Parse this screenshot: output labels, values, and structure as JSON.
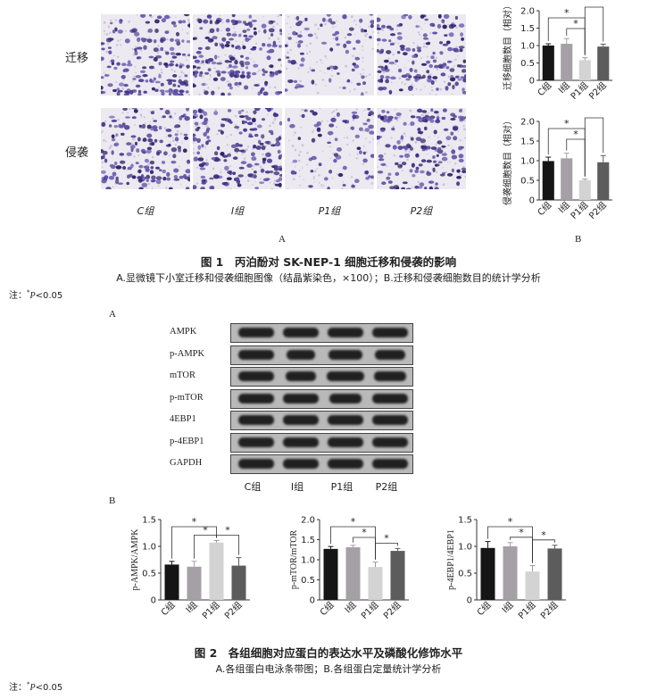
{
  "fig1": {
    "row_labels": [
      "迁移",
      "侵袭"
    ],
    "group_labels": [
      "C组",
      "I组",
      "P1组",
      "P2组"
    ],
    "panel_a": "A",
    "panel_b": "B",
    "title": "图 1　丙泊酚对 SK-NEP-1 细胞迁移和侵袭的影响",
    "subtitle": "A.显微镜下小室迁移和侵袭细胞图像（结晶紫染色，×100）；B.迁移和侵袭细胞数目的统计学分析",
    "note_prefix": "注：",
    "note_sup": "*",
    "note_p": "P",
    "note_rest": "<0.05"
  },
  "fig2": {
    "panel_a": "A",
    "panel_b": "B",
    "blot_labels": [
      "AMPK",
      "p-AMPK",
      "mTOR",
      "p-mTOR",
      "4EBP1",
      "p-4EBP1",
      "GAPDH"
    ],
    "lane_labels": [
      "C组",
      "I组",
      "P1组",
      "P2组"
    ],
    "title": "图 2　各组细胞对应蛋白的表达水平及磷酸化修饰水平",
    "subtitle": "A.各组蛋白电泳条带图；B.各组蛋白定量统计学分析",
    "note_prefix": "注：",
    "note_sup": "*",
    "note_p": "P",
    "note_rest": "<0.05"
  },
  "colors": {
    "black": "#151515",
    "gray1": "#a5a0a6",
    "gray2": "#d3d3d3",
    "gray3": "#5c5c5c",
    "stain": "#4a3b8c"
  },
  "chart_data": [
    {
      "type": "bar",
      "panel": "fig1-migration",
      "ylabel": "迁移细胞数目（相对）",
      "categories": [
        "C组",
        "I组",
        "P1组",
        "P2组"
      ],
      "values": [
        1.0,
        1.05,
        0.58,
        0.97
      ],
      "errors": [
        0.05,
        0.15,
        0.07,
        0.07
      ],
      "ylim": [
        0,
        2.0
      ],
      "yticks": [
        "0",
        "0.5",
        "1.0",
        "1.5",
        "2.0"
      ],
      "significance": [
        [
          "C组",
          "P1组"
        ],
        [
          "I组",
          "P1组"
        ],
        [
          "P1组",
          "P2组"
        ]
      ],
      "sig_label": "*"
    },
    {
      "type": "bar",
      "panel": "fig1-invasion",
      "ylabel": "侵袭细胞数目（相对）",
      "categories": [
        "C组",
        "I组",
        "P1组",
        "P2组"
      ],
      "values": [
        0.99,
        1.06,
        0.5,
        0.96
      ],
      "errors": [
        0.1,
        0.13,
        0.03,
        0.17
      ],
      "ylim": [
        0,
        2.0
      ],
      "yticks": [
        "0",
        "0.5",
        "1.0",
        "1.5",
        "2.0"
      ],
      "significance": [
        [
          "C组",
          "P1组"
        ],
        [
          "I组",
          "P1组"
        ],
        [
          "P1组",
          "P2组"
        ]
      ],
      "sig_label": "*"
    },
    {
      "type": "bar",
      "panel": "fig2-ampk",
      "ylabel": "p-AMPK/AMPK",
      "categories": [
        "C组",
        "I组",
        "P1组",
        "P2组"
      ],
      "values": [
        0.66,
        0.62,
        1.07,
        0.64
      ],
      "errors": [
        0.06,
        0.1,
        0.04,
        0.15
      ],
      "ylim": [
        0,
        1.5
      ],
      "yticks": [
        "0",
        "0.5",
        "1.0",
        "1.5"
      ],
      "significance": [
        [
          "C组",
          "P1组"
        ],
        [
          "I组",
          "P1组"
        ],
        [
          "P1组",
          "P2组"
        ]
      ],
      "sig_label": "*"
    },
    {
      "type": "bar",
      "panel": "fig2-mtor",
      "ylabel": "p-mTOR/mTOR",
      "categories": [
        "C组",
        "I组",
        "P1组",
        "P2组"
      ],
      "values": [
        1.27,
        1.31,
        0.82,
        1.22
      ],
      "errors": [
        0.06,
        0.05,
        0.12,
        0.06
      ],
      "ylim": [
        0,
        2.0
      ],
      "yticks": [
        "0",
        "0.5",
        "1.0",
        "1.5",
        "2.0"
      ],
      "significance": [
        [
          "C组",
          "P1组"
        ],
        [
          "I组",
          "P1组"
        ],
        [
          "P1组",
          "P2组"
        ]
      ],
      "sig_label": "*"
    },
    {
      "type": "bar",
      "panel": "fig2-4ebp1",
      "ylabel": "p-4EBP1/4EBP1",
      "categories": [
        "C组",
        "I组",
        "P1组",
        "P2组"
      ],
      "values": [
        0.97,
        1.0,
        0.53,
        0.96
      ],
      "errors": [
        0.12,
        0.07,
        0.11,
        0.06
      ],
      "ylim": [
        0,
        1.5
      ],
      "yticks": [
        "0",
        "0.5",
        "1.0",
        "1.5"
      ],
      "significance": [
        [
          "C组",
          "P1组"
        ],
        [
          "I组",
          "P1组"
        ],
        [
          "P1组",
          "P2组"
        ]
      ],
      "sig_label": "*"
    }
  ]
}
